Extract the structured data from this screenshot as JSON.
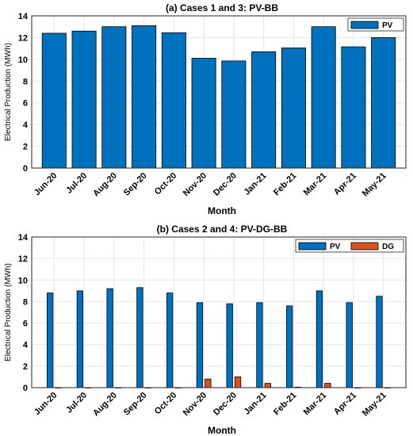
{
  "chart_data": [
    {
      "type": "bar",
      "title": "(a) Cases 1 and 3: PV-BB",
      "xlabel": "Month",
      "ylabel": "Electrical Production (MWh)",
      "ylim": [
        0,
        14
      ],
      "yticks": [
        0,
        2,
        4,
        6,
        8,
        10,
        12,
        14
      ],
      "grid": true,
      "legend_position": "top-right",
      "categories": [
        "Jun-20",
        "Jul-20",
        "Aug-20",
        "Sep-20",
        "Oct-20",
        "Nov-20",
        "Dec-20",
        "Jan-21",
        "Feb-21",
        "Mar-21",
        "Apr-21",
        "May-21"
      ],
      "series": [
        {
          "name": "PV",
          "color": "#0072BD",
          "values": [
            12.4,
            12.6,
            13.0,
            13.1,
            12.45,
            10.1,
            9.85,
            10.7,
            11.05,
            13.0,
            11.15,
            12.0
          ]
        }
      ]
    },
    {
      "type": "bar",
      "title": "(b) Cases 2 and 4: PV-DG-BB",
      "xlabel": "Month",
      "ylabel": "Electrical Production (MWh)",
      "ylim": [
        0,
        14
      ],
      "yticks": [
        0,
        2,
        4,
        6,
        8,
        10,
        12,
        14
      ],
      "grid": true,
      "legend_position": "top-right",
      "categories": [
        "Jun-20",
        "Jul-20",
        "Aug-20",
        "Sep-20",
        "Oct-20",
        "Nov-20",
        "Dec-20",
        "Jan-21",
        "Feb-21",
        "Mar-21",
        "Apr-21",
        "May-21"
      ],
      "series": [
        {
          "name": "PV",
          "color": "#0072BD",
          "values": [
            8.8,
            9.0,
            9.2,
            9.3,
            8.8,
            7.9,
            7.8,
            7.9,
            7.6,
            9.0,
            7.9,
            8.5
          ]
        },
        {
          "name": "DG",
          "color": "#D95319",
          "values": [
            0,
            0,
            0,
            0,
            0,
            0.8,
            1.0,
            0.4,
            0.05,
            0.4,
            0,
            0
          ]
        }
      ]
    }
  ]
}
